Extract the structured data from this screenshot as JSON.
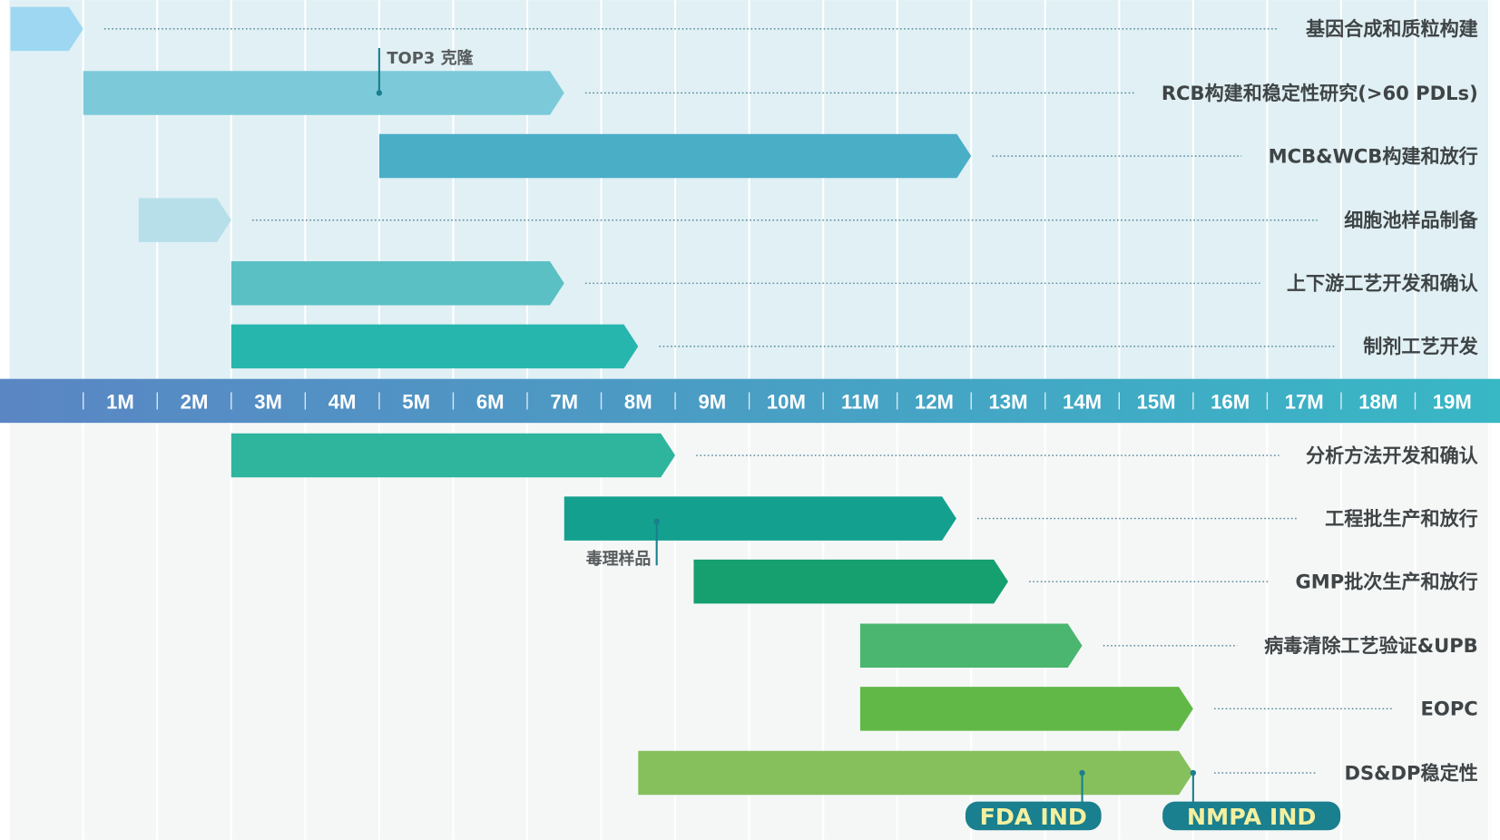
{
  "timeline": {
    "unit": "months",
    "ticks": [
      "1M",
      "2M",
      "3M",
      "4M",
      "5M",
      "6M",
      "7M",
      "8M",
      "9M",
      "10M",
      "11M",
      "12M",
      "13M",
      "14M",
      "15M",
      "16M",
      "17M",
      "18M",
      "19M"
    ],
    "band_colors": [
      "#5a86c4",
      "#38b7c5"
    ]
  },
  "tasks_upper": [
    {
      "label": "基因合成和质粒构建",
      "start": -1,
      "end": 0,
      "color": "#9dd7f1"
    },
    {
      "label": "RCB构建和稳定性研究(>60 PDLs)",
      "start": 0,
      "end": 6.5,
      "color": "#7ccad9"
    },
    {
      "label": "MCB&WCB构建和放行",
      "start": 4,
      "end": 12,
      "color": "#4aaec7"
    },
    {
      "label": "细胞池样品制备",
      "start": 0.75,
      "end": 2,
      "color": "#b6dfea"
    },
    {
      "label": "上下游工艺开发和确认",
      "start": 2,
      "end": 6.5,
      "color": "#5bc0c3"
    },
    {
      "label": "制剂工艺开发",
      "start": 2,
      "end": 7.5,
      "color": "#27b6ae"
    }
  ],
  "tasks_lower": [
    {
      "label": "分析方法开发和确认",
      "start": 2,
      "end": 8,
      "color": "#2fb49d"
    },
    {
      "label": "工程批生产和放行",
      "start": 6.5,
      "end": 11.8,
      "color": "#13a08f"
    },
    {
      "label": "GMP批次生产和放行",
      "start": 8.25,
      "end": 12.5,
      "color": "#16a06f"
    },
    {
      "label": "病毒清除工艺验证&UPB",
      "start": 10.5,
      "end": 13.5,
      "color": "#4ab66f"
    },
    {
      "label": "EOPC",
      "start": 10.5,
      "end": 15,
      "color": "#62b847"
    },
    {
      "label": "DS&DP稳定性",
      "start": 7.5,
      "end": 15,
      "color": "#86c05d"
    }
  ],
  "annotations": [
    {
      "text": "TOP3 克隆",
      "at": 4,
      "task": "RCB构建和稳定性研究(>60 PDLs)"
    },
    {
      "text": "毒理样品",
      "at": 7.75,
      "task": "工程批生产和放行"
    }
  ],
  "milestones": [
    {
      "text": "FDA IND",
      "at": 13.5
    },
    {
      "text": "NMPA IND",
      "at": 15
    }
  ],
  "colors": {
    "upper_bg": "#e0f0f4",
    "lower_bg": "#f5f7f7",
    "milestone": "#1a7f8e",
    "milestone_text": "#f3f0a0",
    "label_text": "#3f4446"
  }
}
